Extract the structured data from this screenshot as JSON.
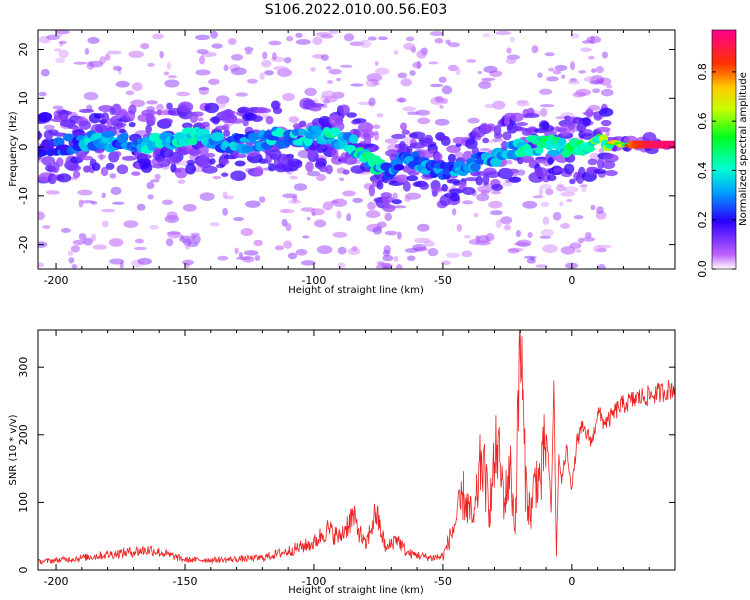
{
  "figure_title": "S106.2022.010.00.56.E03",
  "colors": {
    "snr_line": "#ee2222",
    "frame": "#000000"
  },
  "chart_data": [
    {
      "type": "heatmap",
      "xlabel": "Height of straight line (km)",
      "ylabel": "Frequency (Hz)",
      "xlim": [
        -207,
        40
      ],
      "ylim": [
        -25,
        24
      ],
      "xticks": [
        -200,
        -150,
        -100,
        -50,
        0
      ],
      "yticks": [
        -20,
        -10,
        0,
        10,
        20
      ],
      "colorscale": "rainbow (white at 0, purple, blue, cyan, green, yellow, orange, red, magenta at 1)",
      "ridge": [
        {
          "x": -205,
          "freq": 0.0,
          "amp": 0.2
        },
        {
          "x": -195,
          "freq": 0.5,
          "amp": 0.3
        },
        {
          "x": -185,
          "freq": 1.5,
          "amp": 0.4
        },
        {
          "x": -175,
          "freq": 1.0,
          "amp": 0.35
        },
        {
          "x": -165,
          "freq": 0.5,
          "amp": 0.4
        },
        {
          "x": -155,
          "freq": 1.5,
          "amp": 0.4
        },
        {
          "x": -145,
          "freq": 2.0,
          "amp": 0.45
        },
        {
          "x": -135,
          "freq": 0.5,
          "amp": 0.35
        },
        {
          "x": -125,
          "freq": 1.0,
          "amp": 0.35
        },
        {
          "x": -115,
          "freq": 2.0,
          "amp": 0.4
        },
        {
          "x": -105,
          "freq": 2.0,
          "amp": 0.4
        },
        {
          "x": -95,
          "freq": 2.5,
          "amp": 0.5
        },
        {
          "x": -85,
          "freq": 0.5,
          "amp": 0.45
        },
        {
          "x": -75,
          "freq": -4.0,
          "amp": 0.45
        },
        {
          "x": -70,
          "freq": -6.0,
          "amp": 0.35
        },
        {
          "x": -65,
          "freq": -2.0,
          "amp": 0.3
        },
        {
          "x": -50,
          "freq": -5.0,
          "amp": 0.35
        },
        {
          "x": -40,
          "freq": -4.0,
          "amp": 0.35
        },
        {
          "x": -30,
          "freq": -2.0,
          "amp": 0.35
        },
        {
          "x": -20,
          "freq": 0.0,
          "amp": 0.45
        },
        {
          "x": -10,
          "freq": 0.5,
          "amp": 0.5
        },
        {
          "x": 0,
          "freq": -0.5,
          "amp": 0.55
        },
        {
          "x": 10,
          "freq": 1.5,
          "amp": 0.6
        },
        {
          "x": 20,
          "freq": 0.5,
          "amp": 0.8
        },
        {
          "x": 30,
          "freq": 0.5,
          "amp": 0.95
        },
        {
          "x": 40,
          "freq": 0.5,
          "amp": 0.98
        }
      ]
    },
    {
      "type": "bar",
      "title": "Normalized spectral amplitude",
      "ylim": [
        0,
        0.97
      ],
      "yticks": [
        0.0,
        0.2,
        0.4,
        0.6,
        0.8
      ],
      "tick_labels": [
        "0.0",
        "0.2",
        "0.4",
        "0.6",
        "0.8"
      ]
    },
    {
      "type": "line",
      "xlabel": "Height of straight line (km)",
      "ylabel": "SNR (10 * v/v)",
      "xlim": [
        -207,
        40
      ],
      "ylim": [
        0,
        355
      ],
      "xticks": [
        -200,
        -150,
        -100,
        -50,
        0
      ],
      "yticks": [
        0,
        100,
        200,
        300
      ],
      "series": [
        {
          "x": [
            -207,
            -190,
            -175,
            -163,
            -150,
            -135,
            -120,
            -110,
            -100,
            -95,
            -90,
            -85,
            -80,
            -76,
            -72,
            -68,
            -64,
            -60,
            -55,
            -50,
            -46,
            -42,
            -38,
            -35,
            -32,
            -29,
            -26,
            -24,
            -22,
            -20,
            -18,
            -16,
            -14,
            -12,
            -10,
            -9,
            -8,
            -7,
            -6,
            -5,
            -4,
            -2,
            0,
            2,
            4,
            6,
            8,
            10,
            12,
            14,
            16,
            18,
            20,
            23,
            26,
            30,
            34,
            40
          ],
          "y": [
            12,
            18,
            25,
            30,
            15,
            15,
            18,
            28,
            40,
            60,
            48,
            80,
            35,
            85,
            30,
            48,
            25,
            22,
            18,
            20,
            60,
            110,
            70,
            170,
            90,
            185,
            100,
            155,
            60,
            350,
            130,
            80,
            140,
            130,
            200,
            160,
            85,
            280,
            20,
            170,
            130,
            180,
            120,
            190,
            210,
            200,
            190,
            235,
            220,
            220,
            230,
            240,
            245,
            250,
            255,
            258,
            262,
            270
          ]
        }
      ]
    }
  ]
}
